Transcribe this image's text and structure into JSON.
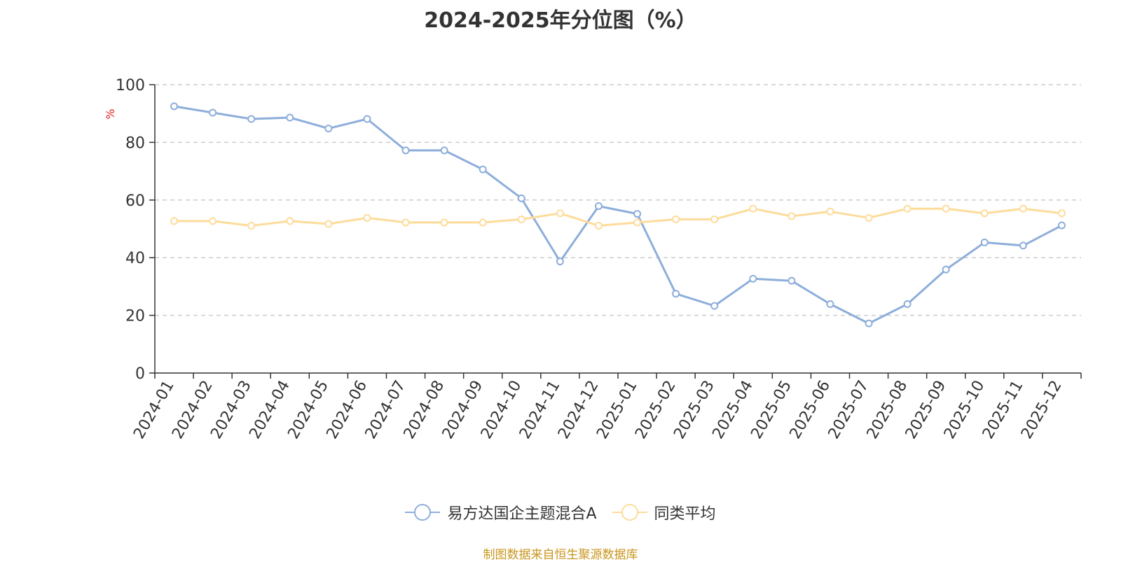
{
  "chart_data": {
    "type": "line",
    "title": "2024-2025年分位图（%）",
    "ylabel": "%",
    "xlabel": "",
    "ylim": [
      0,
      100
    ],
    "yticks": [
      0,
      20,
      40,
      60,
      80,
      100
    ],
    "grid": true,
    "legend_position": "bottom",
    "categories": [
      "2024-01",
      "2024-02",
      "2024-03",
      "2024-04",
      "2024-05",
      "2024-06",
      "2024-07",
      "2024-08",
      "2024-09",
      "2024-10",
      "2024-11",
      "2024-12",
      "2025-01",
      "2025-02",
      "2025-03",
      "2025-04",
      "2025-05",
      "2025-06",
      "2025-07",
      "2025-08",
      "2025-09",
      "2025-10",
      "2025-11",
      "2025-12"
    ],
    "series": [
      {
        "name": "易方达国企主题混合A",
        "color": "#8eaedb",
        "values": [
          92.5,
          90.3,
          88.1,
          88.6,
          84.8,
          88.1,
          77.2,
          77.2,
          70.6,
          60.6,
          38.7,
          57.9,
          55.2,
          27.5,
          23.3,
          32.7,
          32.0,
          23.9,
          17.2,
          23.9,
          35.9,
          45.3,
          44.2,
          51.2
        ]
      },
      {
        "name": "同类平均",
        "color": "#fddc9a",
        "values": [
          52.7,
          52.7,
          51.1,
          52.7,
          51.7,
          53.8,
          52.2,
          52.2,
          52.2,
          53.3,
          55.4,
          51.1,
          52.2,
          53.3,
          53.3,
          57.0,
          54.4,
          56.0,
          53.8,
          57.0,
          57.0,
          55.4,
          57.0,
          55.4
        ]
      }
    ]
  },
  "source": "制图数据来自恒生聚源数据库"
}
